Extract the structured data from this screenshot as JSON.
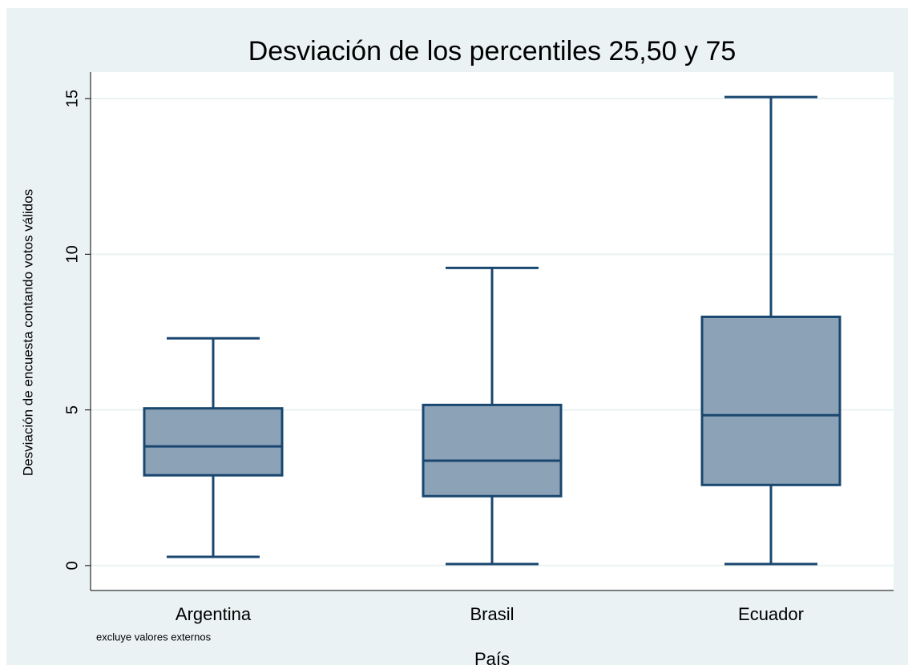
{
  "chart_data": {
    "type": "box",
    "title": "Desviación de los percentiles 25,50 y 75",
    "y_label": "Desviación de encuesta contando votos válidos",
    "x_label": "País",
    "note": "excluye valores externos",
    "categories": [
      "Argentina",
      "Brasil",
      "Ecuador"
    ],
    "min": [
      0.28,
      0.05,
      0.05
    ],
    "q1": [
      2.9,
      2.23,
      2.59
    ],
    "median": [
      3.83,
      3.37,
      4.83
    ],
    "q3": [
      5.05,
      5.16,
      7.99
    ],
    "max": [
      7.3,
      9.56,
      15.05
    ],
    "color": "#8ca2b7",
    "line_color": "#1a476f",
    "ylim": [
      -0.8,
      15.85
    ],
    "yticks": [
      0,
      5,
      10,
      15
    ],
    "grid": true
  }
}
